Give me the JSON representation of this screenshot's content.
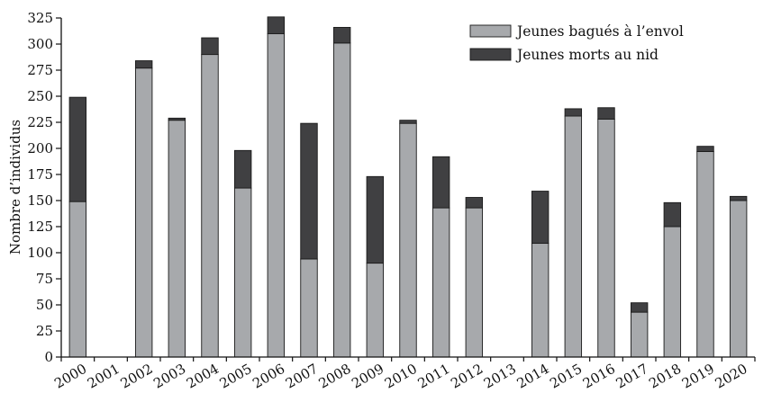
{
  "chart_data": {
    "type": "bar",
    "stacked": true,
    "categories": [
      "2000",
      "2001",
      "2002",
      "2003",
      "2004",
      "2005",
      "2006",
      "2007",
      "2008",
      "2009",
      "2010",
      "2011",
      "2012",
      "2013",
      "2014",
      "2015",
      "2016",
      "2017",
      "2018",
      "2019",
      "2020"
    ],
    "series": [
      {
        "name": "Jeunes bagués à l’envol",
        "color": "#a7a9ac",
        "values": [
          149,
          0,
          277,
          227,
          290,
          162,
          310,
          94,
          301,
          90,
          224,
          143,
          143,
          0,
          109,
          231,
          228,
          43,
          125,
          197,
          150
        ]
      },
      {
        "name": "Jeunes morts au nid",
        "color": "#404042",
        "values": [
          100,
          0,
          7,
          2,
          16,
          36,
          16,
          130,
          15,
          83,
          3,
          49,
          10,
          0,
          50,
          7,
          11,
          9,
          23,
          5,
          4
        ]
      }
    ],
    "title": "",
    "xlabel": "",
    "ylabel": "Nombre d’individus",
    "ylim": [
      0,
      325
    ],
    "yticks": [
      0,
      25,
      50,
      75,
      100,
      125,
      150,
      175,
      200,
      225,
      250,
      275,
      300,
      325
    ],
    "grid": false,
    "legend_position": "top-right"
  }
}
